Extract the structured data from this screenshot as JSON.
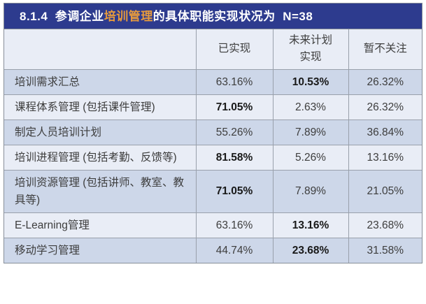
{
  "title": {
    "prefix": "8.1.4  参调企业",
    "highlight": "培训管理",
    "suffix": "的具体职能实现状况为  N=38"
  },
  "colors": {
    "title_bar_navy": "#2d3b8e",
    "title_highlight_orange": "#e69a3d",
    "row_stripe_dark": "#cdd7e9",
    "row_stripe_light": "#e9edf6",
    "grid_border_gray": "#99a0ab",
    "body_text": "#3d3d3d"
  },
  "table": {
    "columns": [
      "",
      "已实现",
      "未来计划实现",
      "暂不关注"
    ],
    "rows": [
      {
        "label": "培训需求汇总",
        "values": [
          "63.16%",
          "10.53%",
          "26.32%"
        ],
        "bold": [
          false,
          true,
          false
        ]
      },
      {
        "label": "课程体系管理 (包括课件管理)",
        "values": [
          "71.05%",
          "2.63%",
          "26.32%"
        ],
        "bold": [
          true,
          false,
          false
        ]
      },
      {
        "label": "制定人员培训计划",
        "values": [
          "55.26%",
          "7.89%",
          "36.84%"
        ],
        "bold": [
          false,
          false,
          false
        ]
      },
      {
        "label": "培训进程管理 (包括考勤、反馈等)",
        "values": [
          "81.58%",
          "5.26%",
          "13.16%"
        ],
        "bold": [
          true,
          false,
          false
        ]
      },
      {
        "label": "培训资源管理 (包括讲师、教室、教具等)",
        "values": [
          "71.05%",
          "7.89%",
          "21.05%"
        ],
        "bold": [
          true,
          false,
          false
        ]
      },
      {
        "label": "E-Learning管理",
        "values": [
          "63.16%",
          "13.16%",
          "23.68%"
        ],
        "bold": [
          false,
          true,
          false
        ]
      },
      {
        "label": "移动学习管理",
        "values": [
          "44.74%",
          "23.68%",
          "31.58%"
        ],
        "bold": [
          false,
          true,
          false
        ]
      }
    ]
  },
  "chart_data": {
    "type": "table",
    "title": "8.1.4 参调企业培训管理的具体职能实现状况为 N=38",
    "categories": [
      "培训需求汇总",
      "课程体系管理 (包括课件管理)",
      "制定人员培训计划",
      "培训进程管理 (包括考勤、反馈等)",
      "培训资源管理 (包括讲师、教室、教具等)",
      "E-Learning管理",
      "移动学习管理"
    ],
    "series": [
      {
        "name": "已实现",
        "values": [
          63.16,
          71.05,
          55.26,
          81.58,
          71.05,
          63.16,
          44.74
        ]
      },
      {
        "name": "未来计划实现",
        "values": [
          10.53,
          2.63,
          7.89,
          5.26,
          7.89,
          13.16,
          23.68
        ]
      },
      {
        "name": "暂不关注",
        "values": [
          26.32,
          26.32,
          36.84,
          13.16,
          21.05,
          23.68,
          31.58
        ]
      }
    ]
  }
}
